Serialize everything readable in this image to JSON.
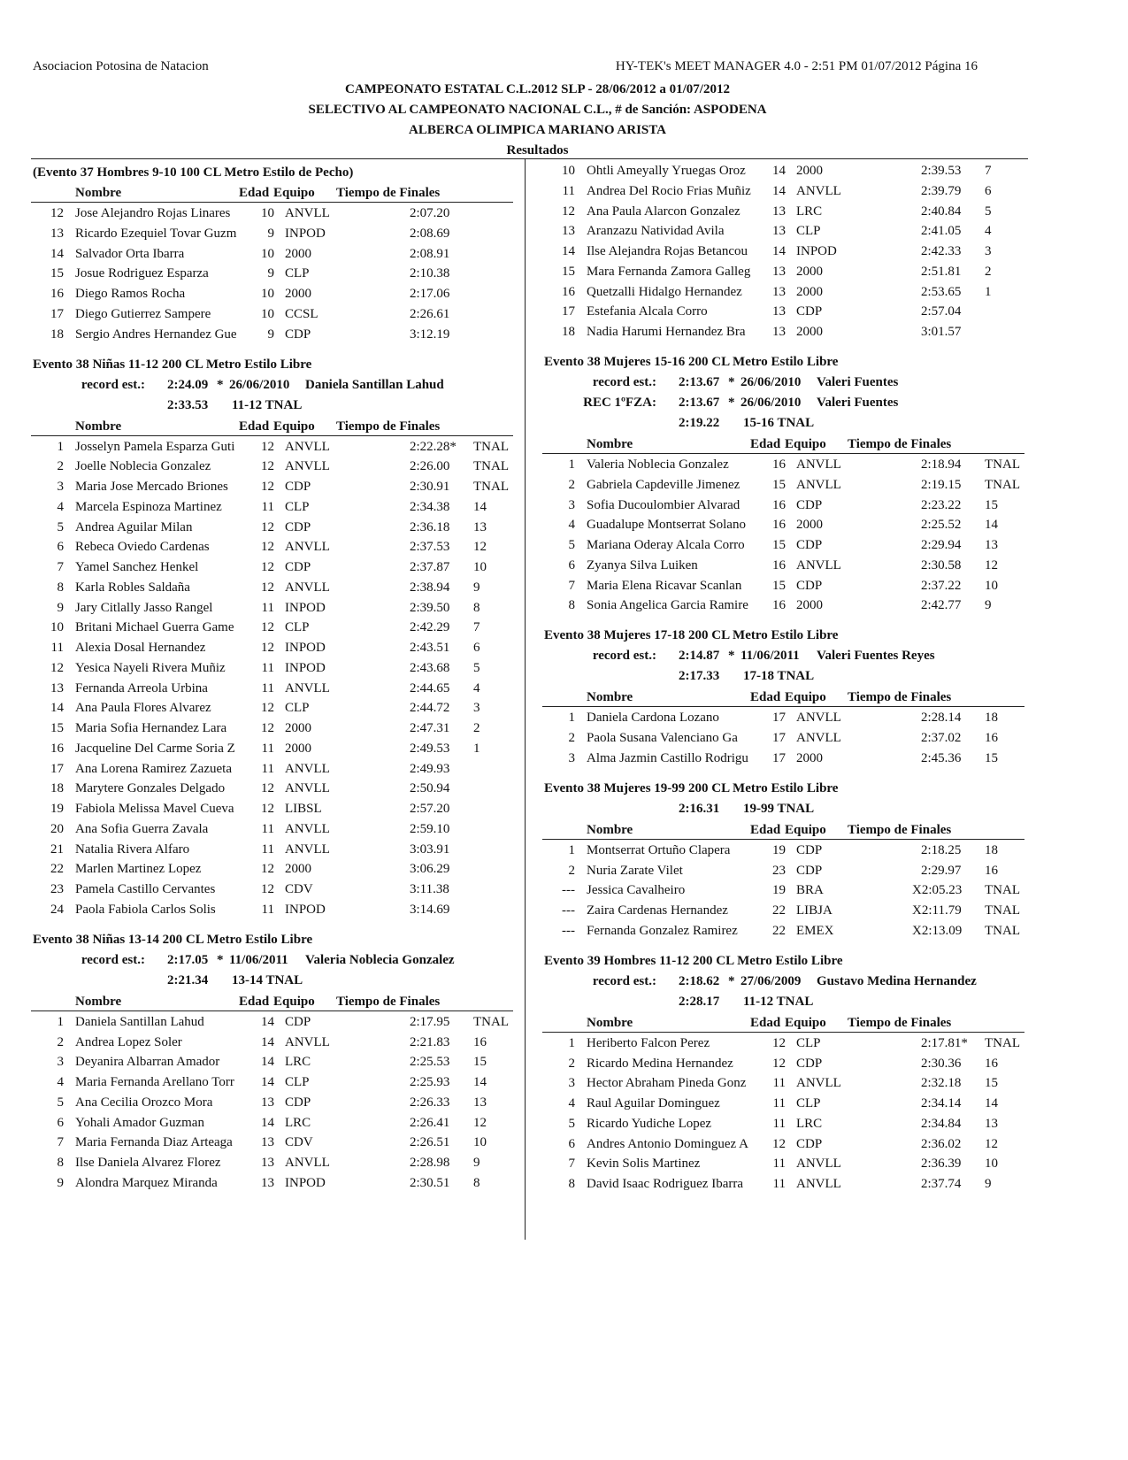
{
  "header": {
    "organization": "Asociacion Potosina de Natacion",
    "software": "HY-TEK's MEET MANAGER 4.0 - 2:51 PM  01/07/2012  Página 16",
    "title1": "CAMPEONATO ESTATAL C.L.2012 SLP - 28/06/2012 a 01/07/2012",
    "title2": "SELECTIVO AL CAMPEONATO NACIONAL C.L., # de Sanción: ASPODENA",
    "title3": "ALBERCA OLIMPICA MARIANO ARISTA",
    "section": "Resultados"
  },
  "columns": [
    "Nombre",
    "Edad",
    "Equipo",
    "Tiempo de Finales"
  ],
  "left": [
    {
      "title": "(Evento 37  Hombres 9-10 100 CL Metro Estilo de Pecho)",
      "rows": [
        [
          "12",
          "Jose Alejandro Rojas Linares",
          "10",
          "ANVLL",
          "2:07.20"
        ],
        [
          "13",
          "Ricardo Ezequiel Tovar Guzm",
          "9",
          "INPOD",
          "2:08.69"
        ],
        [
          "14",
          "Salvador Orta Ibarra",
          "10",
          "2000",
          "2:08.91"
        ],
        [
          "15",
          "Josue Rodriguez Esparza",
          "9",
          "CLP",
          "2:10.38"
        ],
        [
          "16",
          "Diego Ramos Rocha",
          "10",
          "2000",
          "2:17.06"
        ],
        [
          "17",
          "Diego Gutierrez Sampere",
          "10",
          "CCSL",
          "2:26.61"
        ],
        [
          "18",
          "Sergio Andres Hernandez Gue",
          "9",
          "CDP",
          "3:12.19"
        ]
      ]
    },
    {
      "title": "Evento 38  Niñas 11-12 200 CL Metro Estilo Libre",
      "records": [
        {
          "label": "record est.:",
          "time": "2:24.09",
          "mark": "*",
          "date": "26/06/2010",
          "holder": "Daniela Santillan Lahud"
        }
      ],
      "qualifying": {
        "time": "2:33.53",
        "label": "11-12 TNAL"
      },
      "rows": [
        [
          "1",
          "Josselyn Pamela Esparza Guti",
          "12",
          "ANVLL",
          "2:22.28*",
          "TNAL"
        ],
        [
          "2",
          "Joelle Noblecia Gonzalez",
          "12",
          "ANVLL",
          "2:26.00",
          "TNAL"
        ],
        [
          "3",
          "Maria Jose Mercado Briones",
          "12",
          "CDP",
          "2:30.91",
          "TNAL"
        ],
        [
          "4",
          "Marcela Espinoza Martinez",
          "11",
          "CLP",
          "2:34.38",
          "14"
        ],
        [
          "5",
          "Andrea Aguilar Milan",
          "12",
          "CDP",
          "2:36.18",
          "13"
        ],
        [
          "6",
          "Rebeca Oviedo Cardenas",
          "12",
          "ANVLL",
          "2:37.53",
          "12"
        ],
        [
          "7",
          "Yamel Sanchez Henkel",
          "12",
          "CDP",
          "2:37.87",
          "10"
        ],
        [
          "8",
          "Karla Robles Saldaña",
          "12",
          "ANVLL",
          "2:38.94",
          "9"
        ],
        [
          "9",
          "Jary Citlally Jasso Rangel",
          "11",
          "INPOD",
          "2:39.50",
          "8"
        ],
        [
          "10",
          "Britani Michael Guerra Game",
          "12",
          "CLP",
          "2:42.29",
          "7"
        ],
        [
          "11",
          "Alexia Dosal Hernandez",
          "12",
          "INPOD",
          "2:43.51",
          "6"
        ],
        [
          "12",
          "Yesica Nayeli Rivera Muñiz",
          "11",
          "INPOD",
          "2:43.68",
          "5"
        ],
        [
          "13",
          "Fernanda Arreola Urbina",
          "11",
          "ANVLL",
          "2:44.65",
          "4"
        ],
        [
          "14",
          "Ana Paula Flores Alvarez",
          "12",
          "CLP",
          "2:44.72",
          "3"
        ],
        [
          "15",
          "Maria Sofia Hernandez Lara",
          "12",
          "2000",
          "2:47.31",
          "2"
        ],
        [
          "16",
          "Jacqueline Del Carme Soria Z",
          "11",
          "2000",
          "2:49.53",
          "1"
        ],
        [
          "17",
          "Ana Lorena Ramirez Zazueta",
          "11",
          "ANVLL",
          "2:49.93"
        ],
        [
          "18",
          "Marytere Gonzales Delgado",
          "12",
          "ANVLL",
          "2:50.94"
        ],
        [
          "19",
          "Fabiola Melissa Mavel Cueva",
          "12",
          "LIBSL",
          "2:57.20"
        ],
        [
          "20",
          "Ana Sofia Guerra Zavala",
          "11",
          "ANVLL",
          "2:59.10"
        ],
        [
          "21",
          "Natalia Rivera Alfaro",
          "11",
          "ANVLL",
          "3:03.91"
        ],
        [
          "22",
          "Marlen Martinez Lopez",
          "12",
          "2000",
          "3:06.29"
        ],
        [
          "23",
          "Pamela Castillo Cervantes",
          "12",
          "CDV",
          "3:11.38"
        ],
        [
          "24",
          "Paola Fabiola Carlos Solis",
          "11",
          "INPOD",
          "3:14.69"
        ]
      ]
    },
    {
      "title": "Evento 38  Niñas 13-14 200 CL Metro Estilo Libre",
      "records": [
        {
          "label": "record est.:",
          "time": "2:17.05",
          "mark": "*",
          "date": "11/06/2011",
          "holder": "Valeria Noblecia Gonzalez"
        }
      ],
      "qualifying": {
        "time": "2:21.34",
        "label": "13-14 TNAL"
      },
      "rows": [
        [
          "1",
          "Daniela Santillan Lahud",
          "14",
          "CDP",
          "2:17.95",
          "TNAL"
        ],
        [
          "2",
          "Andrea Lopez Soler",
          "14",
          "ANVLL",
          "2:21.83",
          "16"
        ],
        [
          "3",
          "Deyanira Albarran Amador",
          "14",
          "LRC",
          "2:25.53",
          "15"
        ],
        [
          "4",
          "Maria Fernanda Arellano Torr",
          "14",
          "CLP",
          "2:25.93",
          "14"
        ],
        [
          "5",
          "Ana Cecilia Orozco Mora",
          "13",
          "CDP",
          "2:26.33",
          "13"
        ],
        [
          "6",
          "Yohali Amador Guzman",
          "14",
          "LRC",
          "2:26.41",
          "12"
        ],
        [
          "7",
          "Maria Fernanda Diaz Arteaga",
          "13",
          "CDV",
          "2:26.51",
          "10"
        ],
        [
          "8",
          "Ilse Daniela Alvarez Florez",
          "13",
          "ANVLL",
          "2:28.98",
          "9"
        ],
        [
          "9",
          "Alondra Marquez Miranda",
          "13",
          "INPOD",
          "2:30.51",
          "8"
        ]
      ]
    }
  ],
  "right": [
    {
      "rows": [
        [
          "10",
          "Ohtli  Ameyally Yruegas Oroz",
          "14",
          "2000",
          "2:39.53",
          "7"
        ],
        [
          "11",
          "Andrea Del Rocio Frias Muñiz",
          "14",
          "ANVLL",
          "2:39.79",
          "6"
        ],
        [
          "12",
          "Ana Paula Alarcon Gonzalez",
          "13",
          "LRC",
          "2:40.84",
          "5"
        ],
        [
          "13",
          "Aranzazu Natividad Avila",
          "13",
          "CLP",
          "2:41.05",
          "4"
        ],
        [
          "14",
          "Ilse Alejandra Rojas Betancou",
          "14",
          "INPOD",
          "2:42.33",
          "3"
        ],
        [
          "15",
          "Mara Fernanda Zamora Galleg",
          "13",
          "2000",
          "2:51.81",
          "2"
        ],
        [
          "16",
          "Quetzalli Hidalgo Hernandez",
          "13",
          "2000",
          "2:53.65",
          "1"
        ],
        [
          "17",
          "Estefania Alcala Corro",
          "13",
          "CDP",
          "2:57.04"
        ],
        [
          "18",
          "Nadia Harumi Hernandez Bra",
          "13",
          "2000",
          "3:01.57"
        ]
      ]
    },
    {
      "title": "Evento 38  Mujeres 15-16 200 CL Metro Estilo Libre",
      "records": [
        {
          "label": "record est.:",
          "time": "2:13.67",
          "mark": "*",
          "date": "26/06/2010",
          "holder": "Valeri Fuentes"
        },
        {
          "label": "REC 1ºFZA:",
          "time": "2:13.67",
          "mark": "*",
          "date": "26/06/2010",
          "holder": "Valeri Fuentes"
        }
      ],
      "qualifying": {
        "time": "2:19.22",
        "label": "15-16 TNAL"
      },
      "rows": [
        [
          "1",
          "Valeria Noblecia Gonzalez",
          "16",
          "ANVLL",
          "2:18.94",
          "TNAL"
        ],
        [
          "2",
          "Gabriela Capdeville Jimenez",
          "15",
          "ANVLL",
          "2:19.15",
          "TNAL"
        ],
        [
          "3",
          "Sofia Ducoulombier Alvarad",
          "16",
          "CDP",
          "2:23.22",
          "15"
        ],
        [
          "4",
          "Guadalupe Montserrat Solano",
          "16",
          "2000",
          "2:25.52",
          "14"
        ],
        [
          "5",
          "Mariana Oderay Alcala Corro",
          "15",
          "CDP",
          "2:29.94",
          "13"
        ],
        [
          "6",
          "Zyanya Silva Luiken",
          "16",
          "ANVLL",
          "2:30.58",
          "12"
        ],
        [
          "7",
          "Maria Elena Ricavar Scanlan",
          "15",
          "CDP",
          "2:37.22",
          "10"
        ],
        [
          "8",
          "Sonia Angelica Garcia Ramire",
          "16",
          "2000",
          "2:42.77",
          "9"
        ]
      ]
    },
    {
      "title": "Evento 38  Mujeres 17-18 200 CL Metro Estilo Libre",
      "records": [
        {
          "label": "record est.:",
          "time": "2:14.87",
          "mark": "*",
          "date": "11/06/2011",
          "holder": "Valeri Fuentes   Reyes"
        }
      ],
      "qualifying": {
        "time": "2:17.33",
        "label": "17-18 TNAL"
      },
      "rows": [
        [
          "1",
          "Daniela Cardona Lozano",
          "17",
          "ANVLL",
          "2:28.14",
          "18"
        ],
        [
          "2",
          "Paola  Susana Valenciano  Ga",
          "17",
          "ANVLL",
          "2:37.02",
          "16"
        ],
        [
          "3",
          "Alma Jazmin Castillo Rodrigu",
          "17",
          "2000",
          "2:45.36",
          "15"
        ]
      ]
    },
    {
      "title": "Evento 38  Mujeres 19-99 200 CL Metro Estilo Libre",
      "qualifying": {
        "time": "2:16.31",
        "label": "19-99 TNAL"
      },
      "rows": [
        [
          "1",
          "Montserrat Ortuño Clapera",
          "19",
          "CDP",
          "2:18.25",
          "18"
        ],
        [
          "2",
          "Nuria Zarate Vilet",
          "23",
          "CDP",
          "2:29.97",
          "16"
        ],
        [
          "---",
          "Jessica Cavalheiro",
          "19",
          "BRA",
          "X2:05.23",
          "TNAL"
        ],
        [
          "---",
          "Zaira Cardenas Hernandez",
          "22",
          "LIBJA",
          "X2:11.79",
          "TNAL"
        ],
        [
          "---",
          "Fernanda Gonzalez Ramirez",
          "22",
          "EMEX",
          "X2:13.09",
          "TNAL"
        ]
      ]
    },
    {
      "title": "Evento 39  Hombres 11-12 200 CL Metro Estilo Libre",
      "records": [
        {
          "label": "record est.:",
          "time": "2:18.62",
          "mark": "*",
          "date": "27/06/2009",
          "holder": "Gustavo Medina  Hernandez"
        }
      ],
      "qualifying": {
        "time": "2:28.17",
        "label": "11-12 TNAL"
      },
      "rows": [
        [
          "1",
          "Heriberto Falcon Perez",
          "12",
          "CLP",
          "2:17.81*",
          "TNAL"
        ],
        [
          "2",
          "Ricardo Medina Hernandez",
          "12",
          "CDP",
          "2:30.36",
          "16"
        ],
        [
          "3",
          "Hector Abraham Pineda Gonz",
          "11",
          "ANVLL",
          "2:32.18",
          "15"
        ],
        [
          "4",
          "Raul Aguilar Dominguez",
          "11",
          "CLP",
          "2:34.14",
          "14"
        ],
        [
          "5",
          "Ricardo Yudiche Lopez",
          "11",
          "LRC",
          "2:34.84",
          "13"
        ],
        [
          "6",
          "Andres Antonio Dominguez A",
          "12",
          "CDP",
          "2:36.02",
          "12"
        ],
        [
          "7",
          "Kevin Solis Martinez",
          "11",
          "ANVLL",
          "2:36.39",
          "10"
        ],
        [
          "8",
          "David Isaac Rodriguez Ibarra",
          "11",
          "ANVLL",
          "2:37.74",
          "9"
        ]
      ]
    }
  ]
}
